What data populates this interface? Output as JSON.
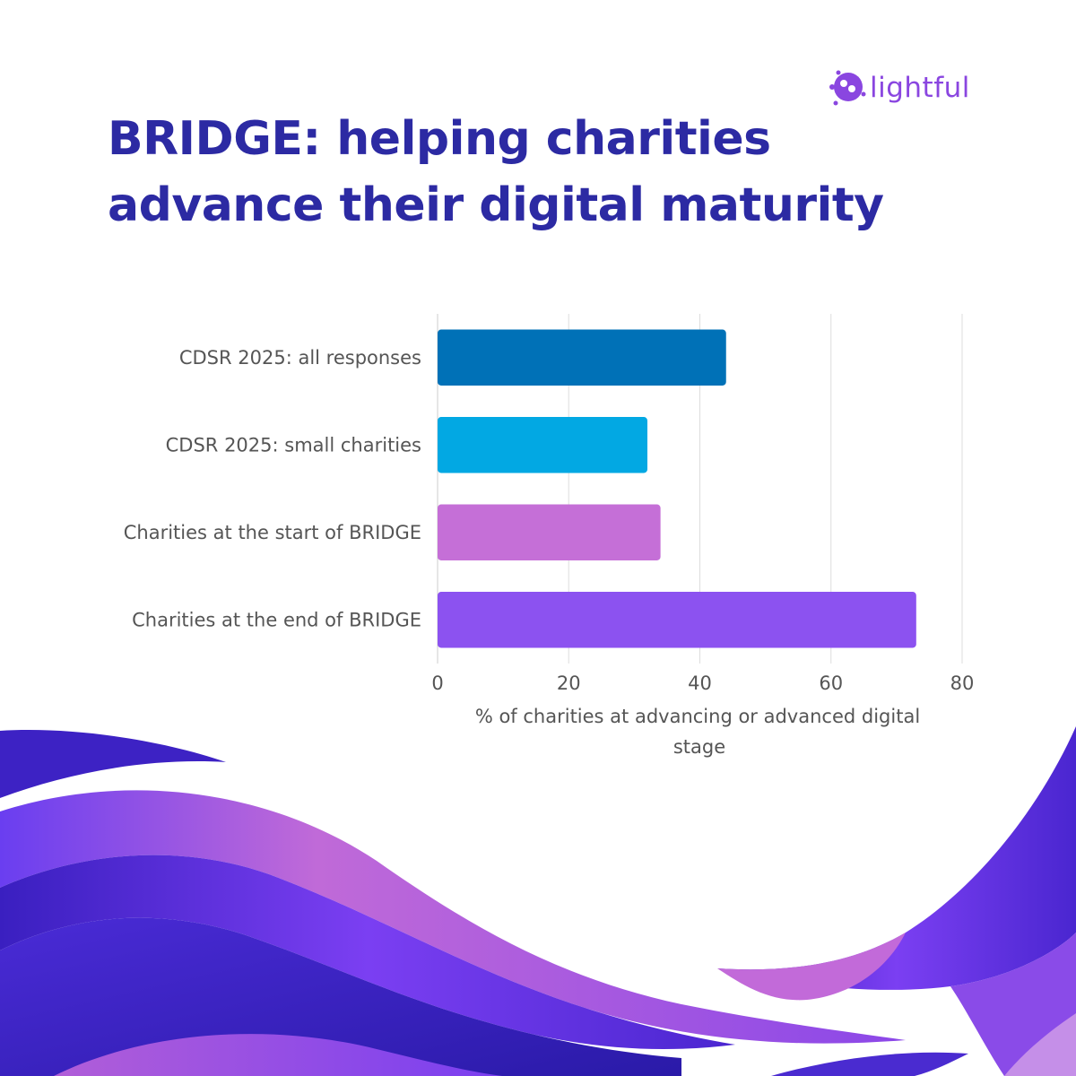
{
  "header": {
    "title_line1": "BRIDGE: helping charities",
    "title_line2": "advance their digital maturity"
  },
  "logo": {
    "text": "lightful",
    "icon": "lightful-people-icon",
    "color": "#8a46e0"
  },
  "colors": {
    "title": "#2c2aa3",
    "wave_dark": "#3a1fc0",
    "wave_violet": "#7b3ff2",
    "wave_pink": "#c06ad8"
  },
  "chart_data": {
    "type": "bar",
    "orientation": "horizontal",
    "categories": [
      "CDSR 2025: all responses",
      "CDSR 2025: small charities",
      "Charities at the start of BRIDGE",
      "Charities at the end of BRIDGE"
    ],
    "values": [
      44,
      32,
      34,
      73
    ],
    "bar_colors": [
      "#0071b7",
      "#02a8e3",
      "#c56fd7",
      "#8c52f0"
    ],
    "xlabel_lines": [
      "% of charities at advancing or advanced digital",
      "stage"
    ],
    "xlim": [
      0,
      80
    ],
    "xticks": [
      "0",
      "20",
      "40",
      "60",
      "80"
    ],
    "grid": true
  }
}
